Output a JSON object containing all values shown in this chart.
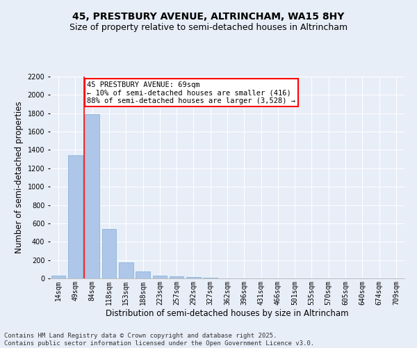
{
  "title1": "45, PRESTBURY AVENUE, ALTRINCHAM, WA15 8HY",
  "title2": "Size of property relative to semi-detached houses in Altrincham",
  "xlabel": "Distribution of semi-detached houses by size in Altrincham",
  "ylabel": "Number of semi-detached properties",
  "categories": [
    "14sqm",
    "49sqm",
    "84sqm",
    "118sqm",
    "153sqm",
    "188sqm",
    "223sqm",
    "257sqm",
    "292sqm",
    "327sqm",
    "362sqm",
    "396sqm",
    "431sqm",
    "466sqm",
    "501sqm",
    "535sqm",
    "570sqm",
    "605sqm",
    "640sqm",
    "674sqm",
    "709sqm"
  ],
  "values": [
    28,
    1340,
    1790,
    540,
    175,
    75,
    30,
    22,
    15,
    8,
    0,
    0,
    0,
    0,
    0,
    0,
    0,
    0,
    0,
    0,
    0
  ],
  "bar_color": "#aec6e8",
  "bar_edge_color": "#7aafd4",
  "vline_color": "red",
  "vline_x": 1.5,
  "annotation_text": "45 PRESTBURY AVENUE: 69sqm\n← 10% of semi-detached houses are smaller (416)\n88% of semi-detached houses are larger (3,528) →",
  "annotation_box_color": "white",
  "annotation_box_edge": "red",
  "ylim": [
    0,
    2200
  ],
  "yticks": [
    0,
    200,
    400,
    600,
    800,
    1000,
    1200,
    1400,
    1600,
    1800,
    2000,
    2200
  ],
  "footer": "Contains HM Land Registry data © Crown copyright and database right 2025.\nContains public sector information licensed under the Open Government Licence v3.0.",
  "bg_color": "#e8eef8",
  "plot_bg_color": "#e8eef8",
  "title_fontsize": 10,
  "subtitle_fontsize": 9,
  "axis_label_fontsize": 8.5,
  "tick_fontsize": 7,
  "footer_fontsize": 6.5,
  "annotation_fontsize": 7.5
}
